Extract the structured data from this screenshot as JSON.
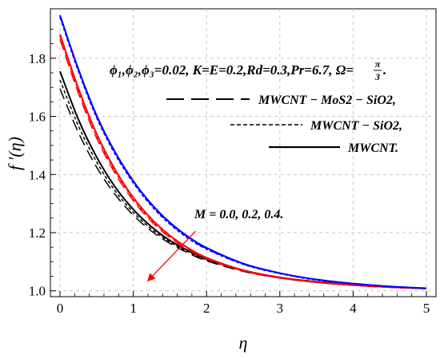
{
  "chart_data": {
    "type": "line",
    "xlabel": "η",
    "ylabel": "f ′(η)",
    "xlim": [
      0,
      5
    ],
    "ylim": [
      0.98,
      1.97
    ],
    "x_ticks": [
      "0",
      "1",
      "2",
      "3",
      "4",
      "5"
    ],
    "x_tick_values": [
      0,
      1,
      2,
      3,
      4,
      5
    ],
    "y_ticks": [
      "1.0",
      "1.2",
      "1.4",
      "1.6",
      "1.8"
    ],
    "y_tick_values": [
      1.0,
      1.2,
      1.4,
      1.6,
      1.8
    ],
    "grid": true,
    "x": [
      0,
      0.25,
      0.5,
      0.75,
      1,
      1.25,
      1.5,
      1.75,
      2,
      2.5,
      3,
      3.5,
      4,
      4.5,
      5
    ],
    "series": [
      {
        "name": "MWCNT - MoS2 - SiO2",
        "param": "M = 0.0",
        "color": "#0000ff",
        "dash": "long",
        "values": [
          1.945,
          1.76,
          1.6,
          1.475,
          1.375,
          1.295,
          1.232,
          1.183,
          1.145,
          1.092,
          1.06,
          1.038,
          1.024,
          1.015,
          1.009
        ]
      },
      {
        "name": "MWCNT - SiO2",
        "param": "M = 0.0",
        "color": "#0000ff",
        "dash": "short",
        "values": [
          1.94,
          1.755,
          1.595,
          1.47,
          1.371,
          1.291,
          1.229,
          1.18,
          1.143,
          1.091,
          1.059,
          1.037,
          1.024,
          1.015,
          1.009
        ]
      },
      {
        "name": "MWCNT",
        "param": "M = 0.0",
        "color": "#0000ff",
        "dash": "solid",
        "values": [
          1.948,
          1.763,
          1.603,
          1.478,
          1.378,
          1.298,
          1.235,
          1.186,
          1.148,
          1.094,
          1.061,
          1.039,
          1.025,
          1.015,
          1.009
        ]
      },
      {
        "name": "MWCNT - MoS2 - SiO2",
        "param": "M = 0.2",
        "color": "#ff0000",
        "dash": "long",
        "values": [
          1.865,
          1.68,
          1.525,
          1.405,
          1.31,
          1.238,
          1.183,
          1.142,
          1.11,
          1.068,
          1.044,
          1.029,
          1.019,
          1.012,
          1.008
        ]
      },
      {
        "name": "MWCNT - SiO2",
        "param": "M = 0.2",
        "color": "#ff0000",
        "dash": "short",
        "values": [
          1.875,
          1.69,
          1.533,
          1.412,
          1.316,
          1.243,
          1.187,
          1.145,
          1.112,
          1.069,
          1.045,
          1.029,
          1.019,
          1.012,
          1.008
        ]
      },
      {
        "name": "MWCNT",
        "param": "M = 0.2",
        "color": "#ff0000",
        "dash": "solid",
        "values": [
          1.882,
          1.697,
          1.54,
          1.418,
          1.321,
          1.247,
          1.19,
          1.147,
          1.114,
          1.071,
          1.046,
          1.03,
          1.02,
          1.013,
          1.008
        ]
      },
      {
        "name": "MWCNT - MoS2 - SiO2",
        "param": "M = 0.4",
        "color": "#000000",
        "dash": "long",
        "values": [
          1.695,
          1.545,
          1.425,
          1.332,
          1.26,
          1.205,
          1.163,
          1.13,
          1.103,
          1.067,
          1.044,
          1.029,
          1.019,
          1.012,
          1.008
        ]
      },
      {
        "name": "MWCNT - SiO2",
        "param": "M = 0.4",
        "color": "#000000",
        "dash": "short",
        "values": [
          1.725,
          1.568,
          1.443,
          1.345,
          1.27,
          1.212,
          1.168,
          1.134,
          1.106,
          1.069,
          1.045,
          1.03,
          1.02,
          1.013,
          1.008
        ]
      },
      {
        "name": "MWCNT",
        "param": "M = 0.4",
        "color": "#000000",
        "dash": "solid",
        "values": [
          1.755,
          1.59,
          1.46,
          1.358,
          1.28,
          1.22,
          1.173,
          1.138,
          1.109,
          1.071,
          1.046,
          1.031,
          1.02,
          1.013,
          1.008
        ]
      }
    ],
    "legend": {
      "position": "top-right",
      "parameters_text": "ϕ₁,ϕ₂,ϕ₃=0.02, K=E=0.2,Rd=0.3,Pr=6.7, Ω=",
      "omega_num": "π",
      "omega_den": "3",
      "parameters_end": ".",
      "entries": [
        {
          "label": "MWCNT − MoS2 − SiO2,",
          "style": "long-dash"
        },
        {
          "label": "MWCNT − SiO2,",
          "style": "short-dash"
        },
        {
          "label": "MWCNT.",
          "style": "solid"
        }
      ]
    },
    "annotation": {
      "text": "M = 0.0, 0.2, 0.4.",
      "arrow_color": "#ff0000",
      "from": [
        1.85,
        1.205
      ],
      "to": [
        1.22,
        1.04
      ]
    }
  }
}
